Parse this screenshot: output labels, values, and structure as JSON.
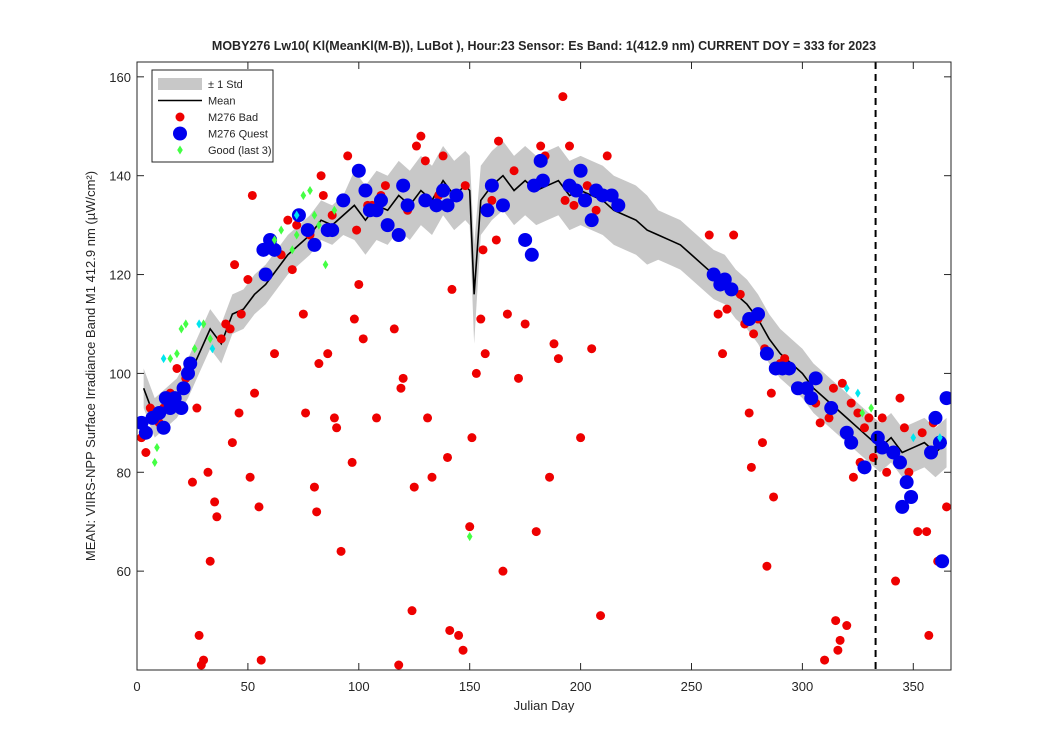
{
  "chart_data": {
    "type": "scatter",
    "title": "MOBY276   Lw10( Kl(MeanKl(M-B)), LuBot ),   Hour:23 Sensor: Es Band: 1(412.9 nm)   CURRENT DOY = 333 for 2023",
    "xlabel": "Julian Day",
    "ylabel": "MEAN: VIIRS-NPP Surface Irradiance Band M1 412.9 nm (µW/cm²)",
    "xlim": [
      0,
      367
    ],
    "ylim": [
      40,
      163
    ],
    "xticks": [
      0,
      50,
      100,
      150,
      200,
      250,
      300,
      350
    ],
    "yticks": [
      60,
      80,
      100,
      120,
      140,
      160
    ],
    "legend": "upper left",
    "vline": 333,
    "band": {
      "name": "± 1 Std",
      "color": "#c8c8c8",
      "upper": [
        101,
        95,
        97,
        99,
        103,
        108,
        113,
        110,
        116,
        117,
        120,
        122,
        125,
        128,
        130,
        132,
        135,
        134,
        136,
        141,
        138,
        141,
        140,
        143,
        141,
        144,
        142,
        146,
        143,
        145,
        144,
        126,
        142,
        145,
        147,
        144,
        146,
        144,
        145,
        146,
        143,
        144,
        143,
        142,
        140,
        139,
        138,
        136,
        133,
        132,
        131,
        129,
        127,
        125,
        124,
        121,
        119,
        116,
        112,
        109,
        107,
        105,
        102,
        100,
        98,
        96,
        94,
        92,
        90,
        92,
        89,
        90,
        91,
        89,
        91
      ],
      "lower": [
        93,
        87,
        89,
        91,
        95,
        100,
        105,
        102,
        108,
        109,
        112,
        114,
        117,
        120,
        122,
        124,
        127,
        126,
        128,
        127,
        124,
        127,
        126,
        129,
        127,
        130,
        128,
        132,
        129,
        131,
        130,
        106,
        128,
        131,
        133,
        130,
        132,
        130,
        131,
        132,
        129,
        130,
        129,
        128,
        126,
        125,
        124,
        122,
        123,
        122,
        121,
        119,
        117,
        115,
        114,
        111,
        109,
        106,
        102,
        99,
        97,
        95,
        92,
        90,
        88,
        86,
        84,
        82,
        80,
        82,
        79,
        80,
        81,
        79,
        81
      ]
    },
    "mean": {
      "name": "Mean",
      "color": "#000000",
      "x": [
        3,
        8,
        13,
        18,
        23,
        28,
        33,
        38,
        43,
        48,
        53,
        58,
        63,
        68,
        73,
        78,
        83,
        88,
        93,
        98,
        103,
        108,
        113,
        118,
        123,
        128,
        133,
        138,
        143,
        148,
        150,
        152,
        155,
        160,
        165,
        170,
        175,
        180,
        185,
        190,
        195,
        200,
        205,
        210,
        215,
        220,
        225,
        230,
        235,
        240,
        245,
        250,
        255,
        260,
        265,
        270,
        275,
        280,
        285,
        290,
        295,
        300,
        305,
        310,
        315,
        320,
        325,
        330,
        335,
        340,
        345,
        350,
        355,
        360,
        365
      ],
      "values": [
        97,
        91,
        93,
        95,
        99,
        104,
        109,
        106,
        112,
        113,
        116,
        118,
        121,
        124,
        126,
        128,
        131,
        130,
        132,
        134,
        131,
        134,
        133,
        136,
        134,
        137,
        135,
        139,
        136,
        138,
        137,
        116,
        135,
        138,
        140,
        137,
        139,
        137,
        138,
        139,
        136,
        137,
        136,
        135,
        133,
        132,
        131,
        129,
        128,
        127,
        126,
        124,
        122,
        120,
        119,
        116,
        114,
        111,
        107,
        104,
        102,
        100,
        97,
        95,
        93,
        91,
        89,
        87,
        85,
        87,
        84,
        85,
        86,
        84,
        86
      ]
    },
    "series": [
      {
        "name": "M276 Bad",
        "color": "#ee0000",
        "x": [
          2,
          4,
          6,
          10,
          12,
          15,
          18,
          20,
          22,
          25,
          27,
          28,
          29,
          30,
          32,
          33,
          35,
          36,
          38,
          40,
          42,
          43,
          44,
          46,
          47,
          50,
          51,
          52,
          53,
          55,
          56,
          58,
          60,
          62,
          65,
          68,
          70,
          72,
          75,
          76,
          78,
          80,
          81,
          82,
          83,
          84,
          86,
          88,
          89,
          90,
          92,
          95,
          97,
          98,
          99,
          100,
          102,
          104,
          106,
          108,
          110,
          112,
          114,
          116,
          118,
          119,
          120,
          122,
          124,
          125,
          126,
          128,
          130,
          131,
          133,
          134,
          136,
          138,
          140,
          141,
          142,
          145,
          147,
          148,
          150,
          151,
          153,
          155,
          156,
          157,
          160,
          162,
          163,
          165,
          167,
          170,
          172,
          175,
          178,
          180,
          182,
          184,
          186,
          188,
          190,
          192,
          193,
          195,
          197,
          200,
          203,
          205,
          207,
          209,
          212,
          258,
          262,
          264,
          266,
          269,
          272,
          274,
          276,
          277,
          278,
          280,
          282,
          283,
          284,
          286,
          287,
          290,
          292,
          300,
          306,
          308,
          310,
          312,
          314,
          315,
          316,
          317,
          318,
          320,
          322,
          323,
          325,
          326,
          328,
          330,
          332,
          336,
          338,
          342,
          344,
          346,
          348,
          350,
          352,
          354,
          356,
          357,
          359,
          361,
          365
        ],
        "values": [
          87,
          84,
          93,
          90,
          93,
          96,
          101,
          97,
          99,
          78,
          93,
          47,
          41,
          42,
          80,
          62,
          74,
          71,
          107,
          110,
          109,
          86,
          122,
          92,
          112,
          119,
          79,
          136,
          96,
          73,
          42,
          120,
          125,
          104,
          124,
          131,
          121,
          130,
          112,
          92,
          128,
          77,
          72,
          102,
          140,
          136,
          104,
          132,
          91,
          89,
          64,
          144,
          82,
          111,
          129,
          118,
          107,
          134,
          134,
          91,
          136,
          138,
          130,
          109,
          41,
          97,
          99,
          133,
          52,
          77,
          146,
          148,
          143,
          91,
          79,
          134,
          136,
          144,
          83,
          48,
          117,
          47,
          44,
          138,
          69,
          87,
          100,
          111,
          125,
          104,
          135,
          127,
          147,
          60,
          112,
          141,
          99,
          110,
          138,
          68,
          146,
          144,
          79,
          106,
          103,
          156,
          135,
          146,
          134,
          87,
          138,
          105,
          133,
          51,
          144,
          128,
          112,
          104,
          113,
          128,
          116,
          110,
          92,
          81,
          108,
          111,
          86,
          105,
          61,
          96,
          75,
          102,
          103,
          97,
          94,
          90,
          42,
          91,
          97,
          50,
          44,
          46,
          98,
          49,
          94,
          79,
          92,
          82,
          89,
          91,
          83,
          91,
          80,
          58,
          95,
          89,
          80,
          75,
          68,
          88,
          68,
          47,
          90,
          62,
          73
        ]
      },
      {
        "name": "M276 Quest",
        "color": "#0000ee",
        "x": [
          2,
          4,
          7,
          10,
          12,
          13,
          15,
          17,
          20,
          21,
          23,
          24,
          57,
          58,
          60,
          62,
          73,
          77,
          80,
          86,
          88,
          93,
          100,
          103,
          105,
          108,
          110,
          113,
          118,
          120,
          122,
          130,
          135,
          138,
          140,
          144,
          158,
          160,
          165,
          175,
          178,
          179,
          182,
          183,
          195,
          198,
          200,
          202,
          205,
          207,
          210,
          214,
          217,
          260,
          263,
          265,
          268,
          276,
          280,
          284,
          288,
          291,
          294,
          298,
          302,
          304,
          306,
          313,
          320,
          322,
          328,
          334,
          336,
          341,
          344,
          345,
          347,
          349,
          358,
          360,
          362,
          363,
          365
        ],
        "values": [
          90,
          88,
          91,
          92,
          89,
          95,
          93,
          95,
          93,
          97,
          100,
          102,
          125,
          120,
          127,
          125,
          132,
          129,
          126,
          129,
          129,
          135,
          141,
          137,
          133,
          133,
          135,
          130,
          128,
          138,
          134,
          135,
          134,
          137,
          134,
          136,
          133,
          138,
          134,
          127,
          124,
          138,
          143,
          139,
          138,
          137,
          141,
          135,
          131,
          137,
          136,
          136,
          134,
          120,
          118,
          119,
          117,
          111,
          112,
          104,
          101,
          101,
          101,
          97,
          97,
          95,
          99,
          93,
          88,
          86,
          81,
          87,
          85,
          84,
          82,
          73,
          78,
          75,
          84,
          91,
          86,
          62,
          95
        ]
      },
      {
        "name": "Good (last 3)",
        "color": "#44ff44",
        "x": [
          8,
          9,
          15,
          18,
          20,
          22,
          26,
          30,
          33,
          62,
          65,
          70,
          72,
          75,
          78,
          80,
          82,
          85,
          89,
          150,
          327,
          331
        ],
        "values": [
          82,
          85,
          103,
          104,
          109,
          110,
          105,
          110,
          107,
          127,
          129,
          125,
          128,
          136,
          137,
          132,
          130,
          122,
          133,
          67,
          92,
          93
        ]
      },
      {
        "color": "#00e5ee",
        "x": [
          12,
          28,
          34,
          72,
          320,
          325,
          350,
          362
        ],
        "values": [
          103,
          110,
          105,
          132,
          97,
          96,
          87,
          87
        ]
      }
    ]
  }
}
